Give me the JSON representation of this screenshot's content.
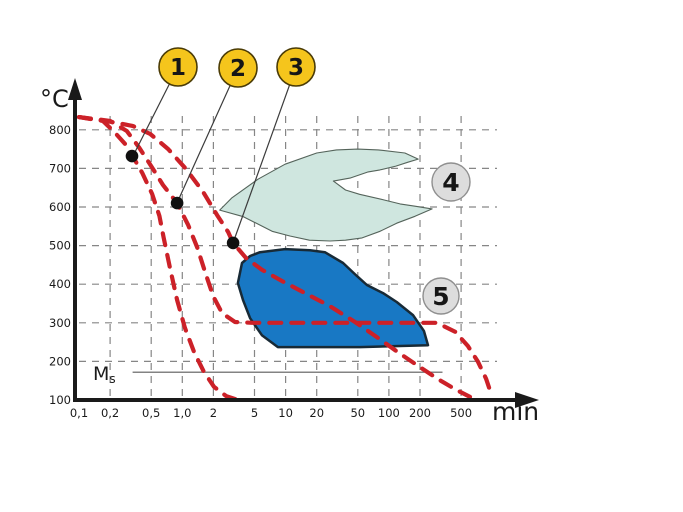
{
  "labels": {
    "y_unit": "°C",
    "x_unit": "min",
    "ms_main": "M",
    "ms_sub": "s"
  },
  "badges": [
    {
      "label": "1",
      "type": "yellow"
    },
    {
      "label": "2",
      "type": "yellow"
    },
    {
      "label": "3",
      "type": "yellow"
    },
    {
      "label": "4",
      "type": "gray"
    },
    {
      "label": "5",
      "type": "gray"
    }
  ],
  "colors": {
    "curve_red": "#cc2128",
    "region4_fill": "#cfe6df",
    "region4_stroke": "#55645b",
    "region5_fill": "#1878c4",
    "region5_stroke": "#182a36",
    "badge_yellow": "#f5c51c",
    "badge_gray": "#dddddd",
    "grid_gray": "#868686",
    "dot_black": "#101010",
    "ms_gray": "#5a5a5a"
  },
  "chart_data": {
    "type": "line",
    "title": "",
    "xlabel": "min",
    "ylabel": "°C",
    "x_scale": "log",
    "xlim": [
      0.1,
      1000
    ],
    "ylim": [
      100,
      870
    ],
    "grid": true,
    "x_ticks": [
      {
        "value": 0.1,
        "label": "0,1",
        "grid": false
      },
      {
        "value": 0.2,
        "label": "0,2",
        "grid": true
      },
      {
        "value": 0.5,
        "label": "0,5",
        "grid": true
      },
      {
        "value": 1,
        "label": "1,0",
        "grid": true
      },
      {
        "value": 2,
        "label": "2",
        "grid": true
      },
      {
        "value": 5,
        "label": "5",
        "grid": true
      },
      {
        "value": 10,
        "label": "10",
        "grid": true
      },
      {
        "value": 20,
        "label": "20",
        "grid": true
      },
      {
        "value": 50,
        "label": "50",
        "grid": true
      },
      {
        "value": 100,
        "label": "100",
        "grid": true
      },
      {
        "value": 200,
        "label": "200",
        "grid": true
      },
      {
        "value": 500,
        "label": "500",
        "grid": true
      }
    ],
    "y_ticks": [
      {
        "value": 100,
        "label": "100",
        "grid": false
      },
      {
        "value": 200,
        "label": "200",
        "grid": true
      },
      {
        "value": 300,
        "label": "300",
        "grid": true
      },
      {
        "value": 400,
        "label": "400",
        "grid": true
      },
      {
        "value": 500,
        "label": "500",
        "grid": true
      },
      {
        "value": 600,
        "label": "600",
        "grid": true
      },
      {
        "value": 700,
        "label": "700",
        "grid": true
      },
      {
        "value": 800,
        "label": "800",
        "grid": true
      }
    ],
    "series": [
      {
        "name": "cooling-curve-1",
        "style": "dashed-red",
        "points": [
          [
            0.1,
            833
          ],
          [
            0.17,
            823
          ],
          [
            0.22,
            794
          ],
          [
            0.28,
            763
          ],
          [
            0.33,
            732
          ],
          [
            0.41,
            688
          ],
          [
            0.51,
            634
          ],
          [
            0.6,
            577
          ],
          [
            0.66,
            520
          ],
          [
            0.76,
            442
          ],
          [
            0.89,
            359
          ],
          [
            1.06,
            287
          ],
          [
            1.3,
            224
          ],
          [
            1.62,
            173
          ],
          [
            2.03,
            134
          ],
          [
            2.66,
            110
          ],
          [
            3.46,
            100
          ]
        ]
      },
      {
        "name": "cooling-curve-2-isothermal-300",
        "style": "dashed-red",
        "points": [
          [
            0.1,
            833
          ],
          [
            0.2,
            823
          ],
          [
            0.29,
            797
          ],
          [
            0.38,
            755
          ],
          [
            0.5,
            706
          ],
          [
            0.65,
            657
          ],
          [
            0.89,
            610
          ],
          [
            1.14,
            553
          ],
          [
            1.4,
            494
          ],
          [
            1.66,
            432
          ],
          [
            1.99,
            369
          ],
          [
            2.43,
            325
          ],
          [
            3.24,
            302
          ],
          [
            4.73,
            300
          ],
          [
            10,
            300
          ],
          [
            34,
            300
          ],
          [
            100,
            300
          ],
          [
            292,
            300
          ],
          [
            437,
            277
          ],
          [
            582,
            240
          ],
          [
            728,
            199
          ],
          [
            873,
            155
          ],
          [
            1000,
            108
          ]
        ]
      },
      {
        "name": "cooling-curve-3",
        "style": "dashed-red",
        "points": [
          [
            0.1,
            833
          ],
          [
            0.21,
            820
          ],
          [
            0.33,
            810
          ],
          [
            0.49,
            789
          ],
          [
            0.73,
            750
          ],
          [
            1.09,
            698
          ],
          [
            1.59,
            639
          ],
          [
            2.17,
            579
          ],
          [
            2.78,
            535
          ],
          [
            3.1,
            507
          ],
          [
            4.14,
            468
          ],
          [
            5.93,
            437
          ],
          [
            9.24,
            408
          ],
          [
            15.4,
            377
          ],
          [
            26.9,
            343
          ],
          [
            47.0,
            302
          ],
          [
            78.5,
            261
          ],
          [
            122,
            224
          ],
          [
            192,
            188
          ],
          [
            300,
            154
          ],
          [
            437,
            128
          ],
          [
            610,
            108
          ]
        ]
      }
    ],
    "marked_points": [
      {
        "badge": "1",
        "t": 0.326,
        "T": 732
      },
      {
        "badge": "2",
        "t": 0.89,
        "T": 610
      },
      {
        "badge": "3",
        "t": 3.1,
        "T": 507
      }
    ],
    "regions": [
      {
        "badge": "4",
        "fill_key": "region4",
        "outline": [
          [
            2.3,
            592
          ],
          [
            3.0,
            623
          ],
          [
            5.4,
            672
          ],
          [
            9.9,
            711
          ],
          [
            20,
            740
          ],
          [
            31,
            748
          ],
          [
            50,
            750
          ],
          [
            79,
            748
          ],
          [
            143,
            740
          ],
          [
            192,
            724
          ],
          [
            153,
            716
          ],
          [
            117,
            706
          ],
          [
            82,
            696
          ],
          [
            63,
            691
          ],
          [
            42,
            675
          ],
          [
            29,
            667
          ],
          [
            38,
            644
          ],
          [
            52,
            633
          ],
          [
            91,
            618
          ],
          [
            128,
            608
          ],
          [
            179,
            602
          ],
          [
            262,
            595
          ],
          [
            179,
            576
          ],
          [
            119,
            558
          ],
          [
            82,
            537
          ],
          [
            55,
            520
          ],
          [
            38,
            514
          ],
          [
            27,
            512
          ],
          [
            17,
            514
          ],
          [
            11,
            525
          ],
          [
            7.4,
            537
          ],
          [
            5.1,
            559
          ],
          [
            3.9,
            575
          ]
        ]
      },
      {
        "badge": "5",
        "fill_key": "region5",
        "outline": [
          [
            3.78,
            455
          ],
          [
            4.53,
            473
          ],
          [
            5.65,
            483
          ],
          [
            9.86,
            491
          ],
          [
            17.2,
            488
          ],
          [
            24.0,
            483
          ],
          [
            36.0,
            455
          ],
          [
            49.1,
            421
          ],
          [
            61.2,
            398
          ],
          [
            87.6,
            377
          ],
          [
            119,
            354
          ],
          [
            171,
            320
          ],
          [
            218,
            279
          ],
          [
            239,
            242
          ],
          [
            128,
            240
          ],
          [
            52.4,
            237
          ],
          [
            21.5,
            237
          ],
          [
            8.42,
            237
          ],
          [
            5.9,
            268
          ],
          [
            4.53,
            312
          ],
          [
            3.87,
            359
          ],
          [
            3.45,
            403
          ]
        ]
      }
    ],
    "ms_line": {
      "T": 172,
      "t_start": 0.33,
      "t_end": 330
    }
  }
}
